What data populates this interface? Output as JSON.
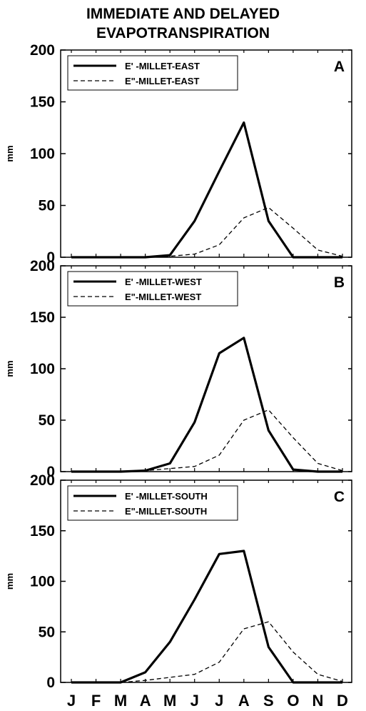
{
  "title_line1": "IMMEDIATE AND DELAYED",
  "title_line2": "EVAPOTRANSPIRATION",
  "colors": {
    "line": "#000000",
    "background": "#ffffff"
  },
  "chart_data": [
    {
      "type": "line",
      "panel": "A",
      "ylabel": "mm",
      "ylim": [
        0,
        200
      ],
      "yticks": [
        0,
        50,
        100,
        150,
        200
      ],
      "categories": [
        "J",
        "F",
        "M",
        "A",
        "M",
        "J",
        "J",
        "A",
        "S",
        "O",
        "N",
        "D"
      ],
      "legend_position": "top-left",
      "series": [
        {
          "name": "E' -MILLET-EAST",
          "style": "solid",
          "values": [
            0,
            0,
            0,
            0,
            2,
            35,
            83,
            130,
            35,
            0,
            0,
            0
          ]
        },
        {
          "name": "E\"-MILLET-EAST",
          "style": "dashed",
          "values": [
            0,
            0,
            0,
            0,
            1,
            3,
            12,
            38,
            48,
            28,
            7,
            1
          ]
        }
      ]
    },
    {
      "type": "line",
      "panel": "B",
      "ylabel": "mm",
      "ylim": [
        0,
        200
      ],
      "yticks": [
        0,
        50,
        100,
        150,
        200
      ],
      "categories": [
        "J",
        "F",
        "M",
        "A",
        "M",
        "J",
        "J",
        "A",
        "S",
        "O",
        "N",
        "D"
      ],
      "legend_position": "top-left",
      "series": [
        {
          "name": "E' -MILLET-WEST",
          "style": "solid",
          "values": [
            0,
            0,
            0,
            1,
            8,
            48,
            115,
            130,
            40,
            2,
            0,
            0
          ]
        },
        {
          "name": "E\"-MILLET-WEST",
          "style": "dashed",
          "values": [
            0,
            0,
            0,
            1,
            3,
            5,
            16,
            50,
            60,
            33,
            8,
            1
          ]
        }
      ]
    },
    {
      "type": "line",
      "panel": "C",
      "ylabel": "mm",
      "ylim": [
        0,
        200
      ],
      "yticks": [
        0,
        50,
        100,
        150,
        200
      ],
      "categories": [
        "J",
        "F",
        "M",
        "A",
        "M",
        "J",
        "J",
        "A",
        "S",
        "O",
        "N",
        "D"
      ],
      "legend_position": "top-left",
      "series": [
        {
          "name": "E' -MILLET-SOUTH",
          "style": "solid",
          "values": [
            0,
            0,
            0,
            10,
            40,
            82,
            127,
            130,
            35,
            0,
            0,
            0
          ]
        },
        {
          "name": "E\"-MILLET-SOUTH",
          "style": "dashed",
          "values": [
            0,
            0,
            0,
            2,
            5,
            8,
            20,
            53,
            60,
            30,
            8,
            1
          ]
        }
      ]
    }
  ]
}
